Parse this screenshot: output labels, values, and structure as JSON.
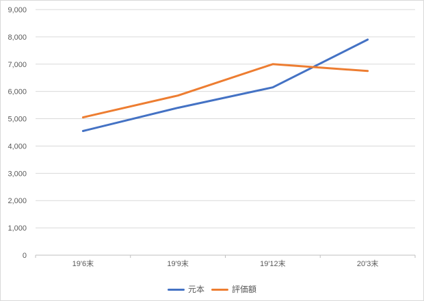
{
  "window": {
    "background": "#ffffff",
    "border_color": "#d9d9d9"
  },
  "chart_data": {
    "type": "line",
    "title": "",
    "xlabel": "",
    "ylabel": "",
    "categories": [
      "19'6末",
      "19'9末",
      "19'12末",
      "20'3末"
    ],
    "series": [
      {
        "name": "元本",
        "color": "#4472c4",
        "values": [
          4550,
          5400,
          6150,
          7900
        ]
      },
      {
        "name": "評価額",
        "color": "#ed7d31",
        "values": [
          5050,
          5850,
          7000,
          6750
        ]
      }
    ],
    "ylim": [
      0,
      9000
    ],
    "y_tick_step": 1000,
    "y_tick_labels": [
      "0",
      "1,000",
      "2,000",
      "3,000",
      "4,000",
      "5,000",
      "6,000",
      "7,000",
      "8,000",
      "9,000"
    ],
    "grid": true,
    "gridline_color": "#d9d9d9",
    "axis_line_color": "#bfbfbf",
    "axis_text_color": "#595959",
    "legend_position": "bottom"
  }
}
